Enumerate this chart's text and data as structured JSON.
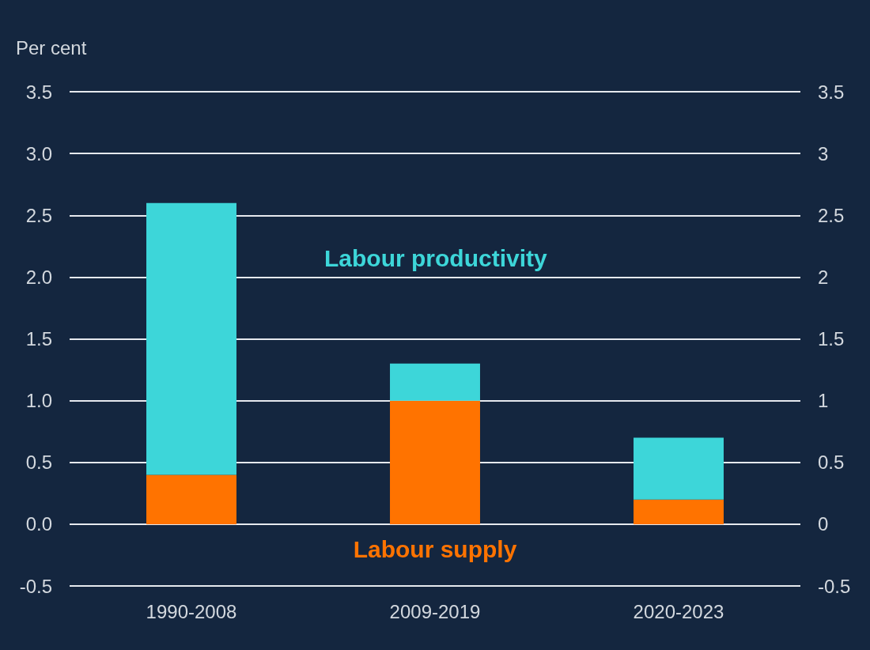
{
  "chart_data": {
    "type": "bar",
    "stacked": true,
    "ylabel": "Per cent",
    "categories": [
      "1990-2008",
      "2009-2019",
      "2020-2023"
    ],
    "series": [
      {
        "name": "Labour supply",
        "color": "#ff7300",
        "values": [
          0.4,
          1.0,
          0.2
        ]
      },
      {
        "name": "Labour productivity",
        "color": "#3dd6d9",
        "values": [
          2.2,
          0.3,
          0.5
        ]
      }
    ],
    "ylim": [
      -0.5,
      3.5
    ],
    "yticks": [
      {
        "value": -0.5,
        "label": "-0.5"
      },
      {
        "value": 0,
        "label": "0.0"
      },
      {
        "value": 0.5,
        "label": "0.5"
      },
      {
        "value": 1,
        "label": "1.0"
      },
      {
        "value": 1.5,
        "label": "1.5"
      },
      {
        "value": 2,
        "label": "2.0"
      },
      {
        "value": 2.5,
        "label": "2.5"
      },
      {
        "value": 3,
        "label": "3.0"
      },
      {
        "value": 3.5,
        "label": "3.5"
      }
    ],
    "y2lim": [
      -0.5,
      3.5
    ],
    "y2ticks": [
      -0.5,
      0,
      0.5,
      1,
      1.5,
      2,
      2.5,
      3,
      3.5
    ],
    "grid": "y",
    "legend": false
  }
}
